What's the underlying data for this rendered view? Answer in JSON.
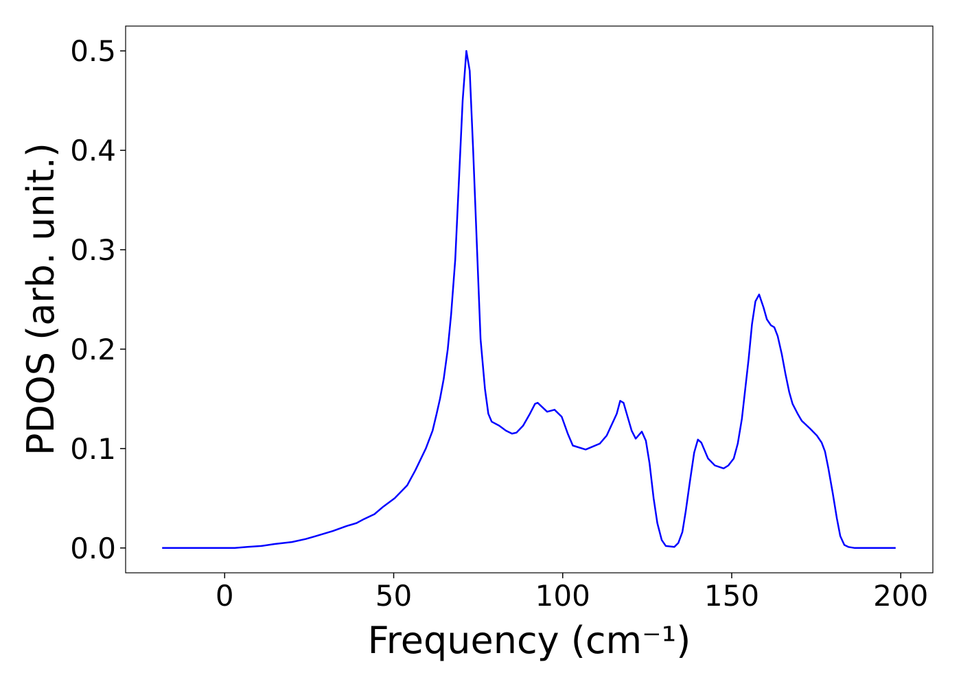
{
  "chart_data": {
    "type": "line",
    "xlabel": "Frequency (cm⁻¹)",
    "ylabel": "PDOS (arb. unit.)",
    "color": "#0000ff",
    "xlim": [
      -29.3,
      209.5
    ],
    "ylim": [
      -0.025,
      0.525
    ],
    "xticks": [
      0,
      50,
      100,
      150,
      200
    ],
    "yticks": [
      {
        "value": 0,
        "label": "0.0"
      },
      {
        "value": 0.1,
        "label": "0.1"
      },
      {
        "value": 0.2,
        "label": "0.2"
      },
      {
        "value": 0.3,
        "label": "0.3"
      },
      {
        "value": 0.4,
        "label": "0.4"
      },
      {
        "value": 0.5,
        "label": "0.5"
      }
    ],
    "x": [
      -18.5,
      3,
      6.7,
      10.8,
      14.8,
      19.9,
      24,
      27,
      32,
      36,
      39,
      41.2,
      44.3,
      46.7,
      50.3,
      54,
      56.4,
      59.5,
      61.5,
      62.7,
      63.7,
      64.8,
      66,
      67,
      68.2,
      70.4,
      71.5,
      72.5,
      73.5,
      75.7,
      77,
      78,
      79,
      81.2,
      83.2,
      85,
      86.3,
      88.3,
      90.3,
      91.8,
      92.6,
      95.4,
      97.6,
      99.7,
      101.5,
      103,
      106.8,
      111,
      113,
      116,
      117,
      118,
      120.4,
      121.6,
      123.4,
      124.6,
      125.7,
      126.9,
      128,
      129.3,
      130.5,
      133,
      134.2,
      135.4,
      136.4,
      137.6,
      138.9,
      140,
      141,
      143,
      145,
      147.6,
      149,
      150.6,
      151.8,
      153,
      155,
      156,
      157,
      158.1,
      159.4,
      160.4,
      161.6,
      162.6,
      163.6,
      164.8,
      165.9,
      167,
      168,
      169.5,
      170.7,
      173.2,
      175.2,
      176.6,
      177.6,
      178.6,
      179.9,
      181.1,
      182.1,
      183.3,
      184.5,
      186.4,
      198.5
    ],
    "values": [
      0,
      0,
      0.001,
      0.002,
      0.004,
      0.006,
      0.009,
      0.012,
      0.017,
      0.022,
      0.025,
      0.029,
      0.034,
      0.041,
      0.05,
      0.063,
      0.078,
      0.1,
      0.118,
      0.135,
      0.15,
      0.17,
      0.2,
      0.235,
      0.29,
      0.45,
      0.5,
      0.48,
      0.4,
      0.21,
      0.16,
      0.135,
      0.127,
      0.123,
      0.118,
      0.115,
      0.116,
      0.123,
      0.135,
      0.145,
      0.146,
      0.137,
      0.139,
      0.132,
      0.115,
      0.103,
      0.099,
      0.105,
      0.113,
      0.135,
      0.148,
      0.146,
      0.118,
      0.11,
      0.117,
      0.108,
      0.085,
      0.05,
      0.025,
      0.008,
      0.002,
      0.001,
      0.005,
      0.016,
      0.037,
      0.066,
      0.096,
      0.109,
      0.106,
      0.09,
      0.083,
      0.08,
      0.083,
      0.09,
      0.105,
      0.13,
      0.19,
      0.225,
      0.248,
      0.255,
      0.242,
      0.23,
      0.224,
      0.222,
      0.213,
      0.195,
      0.175,
      0.157,
      0.145,
      0.135,
      0.128,
      0.12,
      0.113,
      0.106,
      0.097,
      0.08,
      0.055,
      0.03,
      0.012,
      0.003,
      0.001,
      0,
      0
    ]
  }
}
